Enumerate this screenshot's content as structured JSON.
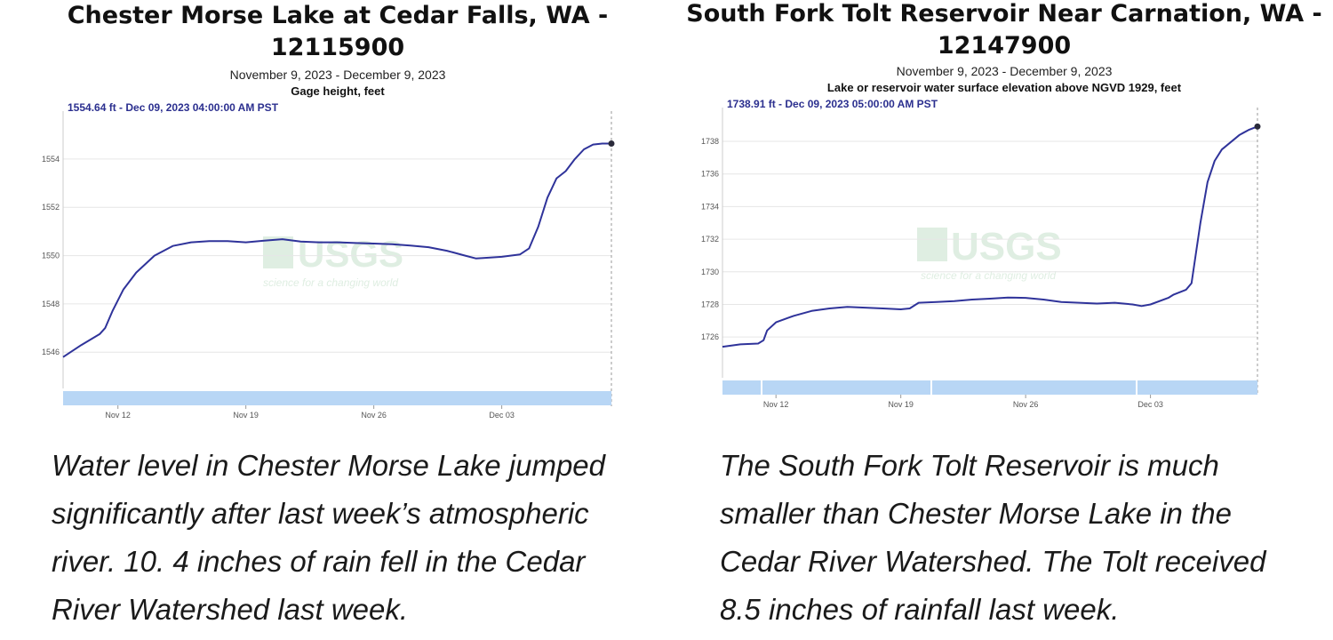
{
  "chart_data": [
    {
      "type": "line",
      "title_lines": [
        "Chester Morse Lake at Cedar Falls, WA -",
        "12115900"
      ],
      "subtitle": "November 9, 2023 - December 9, 2023",
      "parameter": "Gage height, feet",
      "latest_label": "1554.64 ft - Dec 09, 2023 04:00:00 AM PST",
      "watermark": "USGS",
      "watermark_tagline": "science for a changing world",
      "x_ticks": [
        {
          "label": "Nov 12",
          "day": 3
        },
        {
          "label": "Nov 19",
          "day": 10
        },
        {
          "label": "Nov 26",
          "day": 17
        },
        {
          "label": "Dec 03",
          "day": 24
        }
      ],
      "y_ticks": [
        1546,
        1548,
        1550,
        1552,
        1554
      ],
      "xlim": [
        0,
        30
      ],
      "ylim": [
        1544.5,
        1555.8
      ],
      "series": [
        {
          "name": "Gage height",
          "color": "#2f339a",
          "x": [
            0,
            1,
            2,
            2.3,
            2.7,
            3.3,
            4,
            5,
            6,
            7,
            8,
            9,
            10,
            11,
            12,
            13,
            14,
            15,
            16,
            17,
            18,
            19,
            20,
            21,
            22,
            22.6,
            23,
            24,
            25,
            25.5,
            26,
            26.5,
            27,
            27.5,
            28,
            28.5,
            29,
            29.5,
            30
          ],
          "values": [
            1545.8,
            1546.3,
            1546.75,
            1547.0,
            1547.7,
            1548.6,
            1549.3,
            1550.0,
            1550.4,
            1550.55,
            1550.6,
            1550.6,
            1550.55,
            1550.62,
            1550.68,
            1550.58,
            1550.55,
            1550.55,
            1550.52,
            1550.5,
            1550.47,
            1550.42,
            1550.35,
            1550.2,
            1550.0,
            1549.88,
            1549.9,
            1549.95,
            1550.05,
            1550.3,
            1551.2,
            1552.4,
            1553.2,
            1553.5,
            1554.0,
            1554.4,
            1554.6,
            1554.64,
            1554.64
          ]
        }
      ]
    },
    {
      "type": "line",
      "title_lines": [
        "South Fork Tolt Reservoir Near Carnation, WA -",
        "12147900"
      ],
      "subtitle": "November 9, 2023 - December 9, 2023",
      "parameter": "Lake or reservoir water surface elevation above NGVD 1929, feet",
      "latest_label": "1738.91 ft - Dec 09, 2023 05:00:00 AM PST",
      "watermark": "USGS",
      "watermark_tagline": "science for a changing world",
      "x_ticks": [
        {
          "label": "Nov 12",
          "day": 3
        },
        {
          "label": "Nov 19",
          "day": 10
        },
        {
          "label": "Nov 26",
          "day": 17
        },
        {
          "label": "Dec 03",
          "day": 24
        }
      ],
      "y_ticks": [
        1726,
        1728,
        1730,
        1732,
        1734,
        1736,
        1738
      ],
      "xlim": [
        0,
        30
      ],
      "ylim": [
        1723.5,
        1739.8
      ],
      "series": [
        {
          "name": "Water surface elevation",
          "color": "#2f339a",
          "x": [
            0,
            1,
            2,
            2.3,
            2.5,
            3,
            4,
            5,
            6,
            7,
            8,
            9,
            10,
            10.5,
            11,
            12,
            13,
            14,
            15,
            16,
            17,
            18,
            19,
            20,
            21,
            22,
            23,
            23.5,
            24,
            25,
            25.3,
            26,
            26.3,
            26.8,
            27.2,
            27.6,
            28,
            29,
            29.5,
            30
          ],
          "values": [
            1725.4,
            1725.55,
            1725.6,
            1725.8,
            1726.4,
            1726.9,
            1727.3,
            1727.6,
            1727.75,
            1727.85,
            1727.8,
            1727.75,
            1727.7,
            1727.75,
            1728.1,
            1728.15,
            1728.2,
            1728.3,
            1728.35,
            1728.42,
            1728.4,
            1728.3,
            1728.15,
            1728.1,
            1728.05,
            1728.1,
            1728.0,
            1727.9,
            1728.0,
            1728.4,
            1728.6,
            1728.9,
            1729.3,
            1733.0,
            1735.5,
            1736.8,
            1737.5,
            1738.4,
            1738.7,
            1738.91
          ]
        }
      ]
    }
  ],
  "captions": [
    {
      "lines": [
        "Water level in Chester Morse Lake jumped",
        "significantly after last week’s atmospheric",
        "river. 10. 4 inches of rain fell in the Cedar",
        "River Watershed last week."
      ]
    },
    {
      "lines": [
        "The South Fork Tolt Reservoir is much",
        "smaller than Chester Morse Lake in the",
        "Cedar River Watershed. The Tolt  received",
        "8.5 inches of rainfall  last week."
      ]
    }
  ]
}
